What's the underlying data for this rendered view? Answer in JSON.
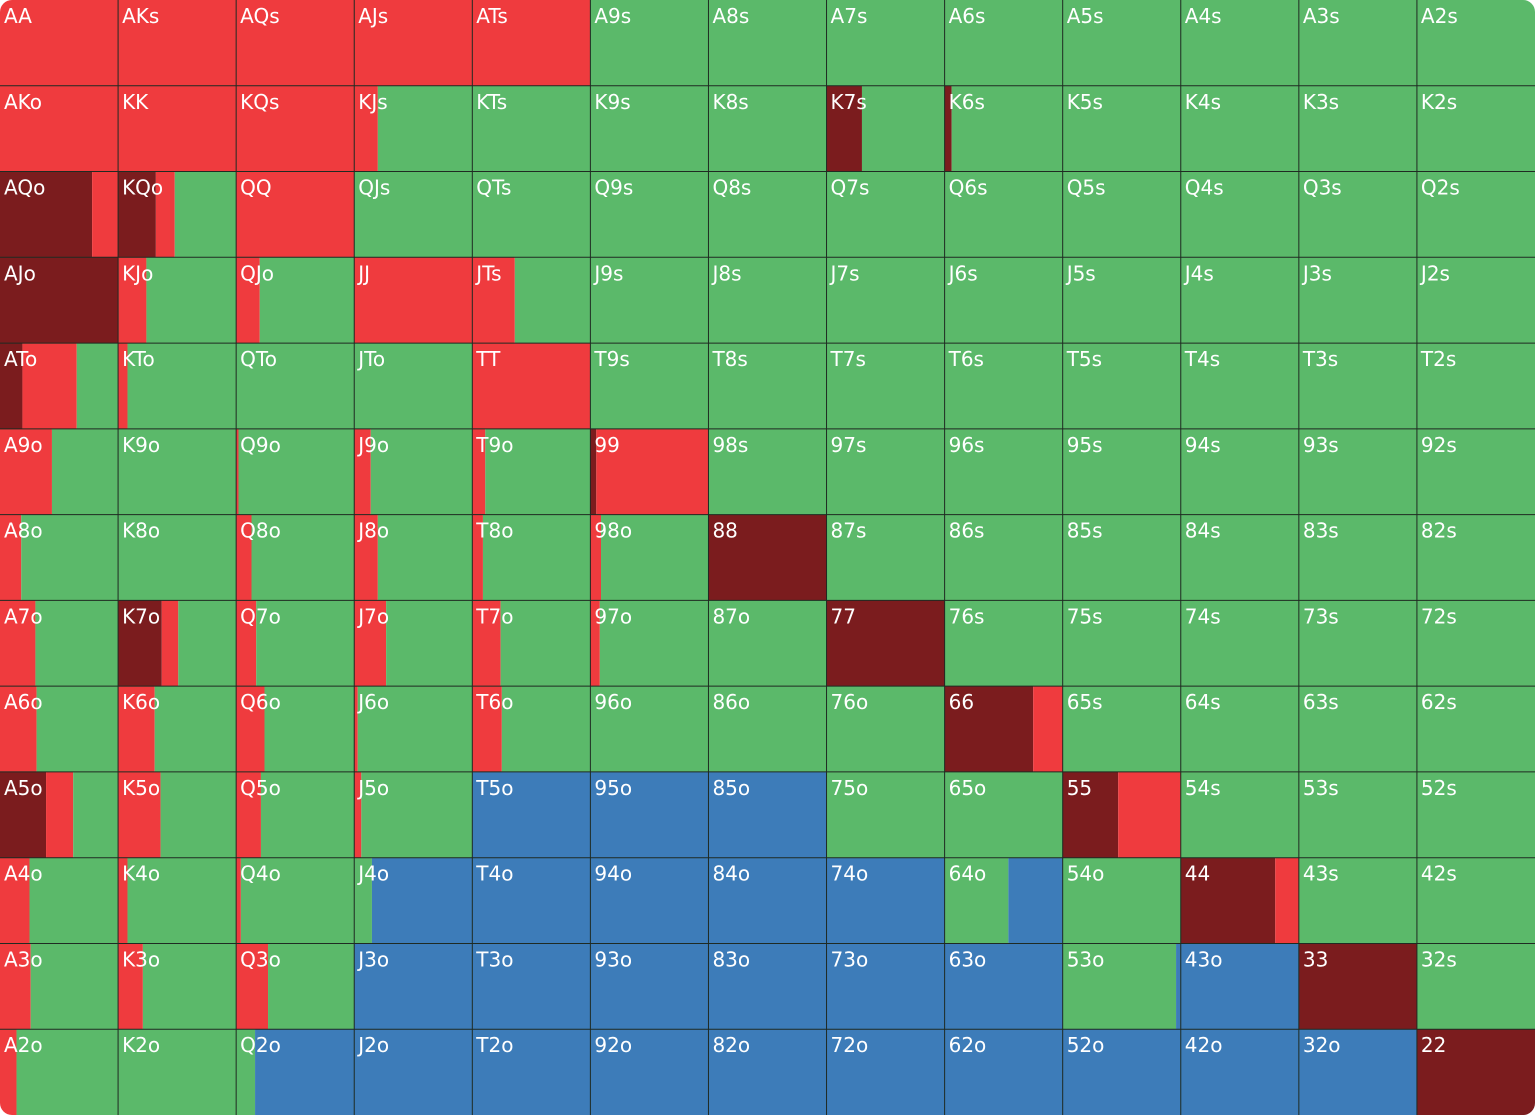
{
  "grid": {
    "colors": [
      "#7b1c1e",
      "#ef3b3e",
      "#5bb96a",
      "#3d7cb9"
    ],
    "labels": [
      [
        "AA",
        "AKs",
        "AQs",
        "AJs",
        "ATs",
        "A9s",
        "A8s",
        "A7s",
        "A6s",
        "A5s",
        "A4s",
        "A3s",
        "A2s"
      ],
      [
        "AKo",
        "KK",
        "KQs",
        "KJs",
        "KTs",
        "K9s",
        "K8s",
        "K7s",
        "K6s",
        "K5s",
        "K4s",
        "K3s",
        "K2s"
      ],
      [
        "AQo",
        "KQo",
        "QQ",
        "QJs",
        "QTs",
        "Q9s",
        "Q8s",
        "Q7s",
        "Q6s",
        "Q5s",
        "Q4s",
        "Q3s",
        "Q2s"
      ],
      [
        "AJo",
        "KJo",
        "QJo",
        "JJ",
        "JTs",
        "J9s",
        "J8s",
        "J7s",
        "J6s",
        "J5s",
        "J4s",
        "J3s",
        "J2s"
      ],
      [
        "ATo",
        "KTo",
        "QTo",
        "JTo",
        "TT",
        "T9s",
        "T8s",
        "T7s",
        "T6s",
        "T5s",
        "T4s",
        "T3s",
        "T2s"
      ],
      [
        "A9o",
        "K9o",
        "Q9o",
        "J9o",
        "T9o",
        "99",
        "98s",
        "97s",
        "96s",
        "95s",
        "94s",
        "93s",
        "92s"
      ],
      [
        "A8o",
        "K8o",
        "Q8o",
        "J8o",
        "T8o",
        "98o",
        "88",
        "87s",
        "86s",
        "85s",
        "84s",
        "83s",
        "82s"
      ],
      [
        "A7o",
        "K7o",
        "Q7o",
        "J7o",
        "T7o",
        "97o",
        "87o",
        "77",
        "76s",
        "75s",
        "74s",
        "73s",
        "72s"
      ],
      [
        "A6o",
        "K6o",
        "Q6o",
        "J6o",
        "T6o",
        "96o",
        "86o",
        "76o",
        "66",
        "65s",
        "64s",
        "63s",
        "62s"
      ],
      [
        "A5o",
        "K5o",
        "Q5o",
        "J5o",
        "T5o",
        "95o",
        "85o",
        "75o",
        "65o",
        "55",
        "54s",
        "53s",
        "52s"
      ],
      [
        "A4o",
        "K4o",
        "Q4o",
        "J4o",
        "T4o",
        "94o",
        "84o",
        "74o",
        "64o",
        "54o",
        "44",
        "43s",
        "42s"
      ],
      [
        "A3o",
        "K3o",
        "Q3o",
        "J3o",
        "T3o",
        "93o",
        "83o",
        "73o",
        "63o",
        "53o",
        "43o",
        "33",
        "32s"
      ],
      [
        "A2o",
        "K2o",
        "Q2o",
        "J2o",
        "T2o",
        "92o",
        "82o",
        "72o",
        "62o",
        "52o",
        "42o",
        "32o",
        "22"
      ]
    ],
    "freqs": [
      [
        [
          0,
          100,
          0,
          0
        ],
        [
          0,
          100,
          0,
          0
        ],
        [
          0,
          100,
          0,
          0
        ],
        [
          0,
          100,
          0,
          0
        ],
        [
          0,
          100,
          0,
          0
        ],
        [
          0,
          0,
          100,
          0
        ],
        [
          0,
          0,
          100,
          0
        ],
        [
          0,
          0,
          100,
          0
        ],
        [
          0,
          0,
          100,
          0
        ],
        [
          0,
          0,
          100,
          0
        ],
        [
          0,
          0,
          100,
          0
        ],
        [
          0,
          0,
          100,
          0
        ],
        [
          0,
          0,
          100,
          0
        ]
      ],
      [
        [
          0,
          100,
          0,
          0
        ],
        [
          0,
          100,
          0,
          0
        ],
        [
          0,
          100,
          0,
          0
        ],
        [
          0,
          20,
          80,
          0
        ],
        [
          0,
          0,
          100,
          0
        ],
        [
          0,
          0,
          100,
          0
        ],
        [
          0,
          0,
          100,
          0
        ],
        [
          30,
          0,
          70,
          0
        ],
        [
          6,
          0,
          94,
          0
        ],
        [
          0,
          0,
          100,
          0
        ],
        [
          0,
          0,
          100,
          0
        ],
        [
          0,
          0,
          100,
          0
        ],
        [
          0,
          0,
          100,
          0
        ]
      ],
      [
        [
          78,
          22,
          0,
          0
        ],
        [
          32,
          16,
          52,
          0
        ],
        [
          0,
          100,
          0,
          0
        ],
        [
          0,
          0,
          100,
          0
        ],
        [
          0,
          0,
          100,
          0
        ],
        [
          0,
          0,
          100,
          0
        ],
        [
          0,
          0,
          100,
          0
        ],
        [
          0,
          0,
          100,
          0
        ],
        [
          0,
          0,
          100,
          0
        ],
        [
          0,
          0,
          100,
          0
        ],
        [
          0,
          0,
          100,
          0
        ],
        [
          0,
          0,
          100,
          0
        ],
        [
          0,
          0,
          100,
          0
        ]
      ],
      [
        [
          100,
          0,
          0,
          0
        ],
        [
          0,
          24,
          76,
          0
        ],
        [
          0,
          20,
          80,
          0
        ],
        [
          0,
          100,
          0,
          0
        ],
        [
          0,
          36,
          64,
          0
        ],
        [
          0,
          0,
          100,
          0
        ],
        [
          0,
          0,
          100,
          0
        ],
        [
          0,
          0,
          100,
          0
        ],
        [
          0,
          0,
          100,
          0
        ],
        [
          0,
          0,
          100,
          0
        ],
        [
          0,
          0,
          100,
          0
        ],
        [
          0,
          0,
          100,
          0
        ],
        [
          0,
          0,
          100,
          0
        ]
      ],
      [
        [
          19,
          46,
          35,
          0
        ],
        [
          0,
          8,
          92,
          0
        ],
        [
          0,
          0,
          100,
          0
        ],
        [
          0,
          0,
          100,
          0
        ],
        [
          0,
          100,
          0,
          0
        ],
        [
          0,
          0,
          100,
          0
        ],
        [
          0,
          0,
          100,
          0
        ],
        [
          0,
          0,
          100,
          0
        ],
        [
          0,
          0,
          100,
          0
        ],
        [
          0,
          0,
          100,
          0
        ],
        [
          0,
          0,
          100,
          0
        ],
        [
          0,
          0,
          100,
          0
        ],
        [
          0,
          0,
          100,
          0
        ]
      ],
      [
        [
          0,
          44,
          56,
          0
        ],
        [
          0,
          0,
          100,
          0
        ],
        [
          0,
          2,
          98,
          0
        ],
        [
          0,
          14,
          86,
          0
        ],
        [
          0,
          11,
          89,
          0
        ],
        [
          5,
          95,
          0,
          0
        ],
        [
          0,
          0,
          100,
          0
        ],
        [
          0,
          0,
          100,
          0
        ],
        [
          0,
          0,
          100,
          0
        ],
        [
          0,
          0,
          100,
          0
        ],
        [
          0,
          0,
          100,
          0
        ],
        [
          0,
          0,
          100,
          0
        ],
        [
          0,
          0,
          100,
          0
        ]
      ],
      [
        [
          0,
          18,
          82,
          0
        ],
        [
          0,
          0,
          100,
          0
        ],
        [
          0,
          13,
          87,
          0
        ],
        [
          0,
          20,
          80,
          0
        ],
        [
          0,
          9,
          91,
          0
        ],
        [
          0,
          9,
          91,
          0
        ],
        [
          100,
          0,
          0,
          0
        ],
        [
          0,
          0,
          100,
          0
        ],
        [
          0,
          0,
          100,
          0
        ],
        [
          0,
          0,
          100,
          0
        ],
        [
          0,
          0,
          100,
          0
        ],
        [
          0,
          0,
          100,
          0
        ],
        [
          0,
          0,
          100,
          0
        ]
      ],
      [
        [
          0,
          30,
          70,
          0
        ],
        [
          37,
          14,
          49,
          0
        ],
        [
          0,
          17,
          83,
          0
        ],
        [
          0,
          27,
          73,
          0
        ],
        [
          0,
          24,
          76,
          0
        ],
        [
          0,
          8,
          92,
          0
        ],
        [
          0,
          0,
          100,
          0
        ],
        [
          100,
          0,
          0,
          0
        ],
        [
          0,
          0,
          100,
          0
        ],
        [
          0,
          0,
          100,
          0
        ],
        [
          0,
          0,
          100,
          0
        ],
        [
          0,
          0,
          100,
          0
        ],
        [
          0,
          0,
          100,
          0
        ]
      ],
      [
        [
          0,
          31,
          69,
          0
        ],
        [
          0,
          31,
          69,
          0
        ],
        [
          0,
          24,
          76,
          0
        ],
        [
          0,
          3,
          97,
          0
        ],
        [
          0,
          25,
          75,
          0
        ],
        [
          0,
          0,
          100,
          0
        ],
        [
          0,
          0,
          100,
          0
        ],
        [
          0,
          0,
          100,
          0
        ],
        [
          75,
          25,
          0,
          0
        ],
        [
          0,
          0,
          100,
          0
        ],
        [
          0,
          0,
          100,
          0
        ],
        [
          0,
          0,
          100,
          0
        ],
        [
          0,
          0,
          100,
          0
        ]
      ],
      [
        [
          39,
          23,
          38,
          0
        ],
        [
          0,
          36,
          64,
          0
        ],
        [
          0,
          21,
          79,
          0
        ],
        [
          0,
          6,
          94,
          0
        ],
        [
          0,
          0,
          0,
          100
        ],
        [
          0,
          0,
          0,
          100
        ],
        [
          0,
          0,
          0,
          100
        ],
        [
          0,
          0,
          100,
          0
        ],
        [
          0,
          0,
          100,
          0
        ],
        [
          47,
          53,
          0,
          0
        ],
        [
          0,
          0,
          100,
          0
        ],
        [
          0,
          0,
          100,
          0
        ],
        [
          0,
          0,
          100,
          0
        ]
      ],
      [
        [
          0,
          25,
          75,
          0
        ],
        [
          0,
          8,
          92,
          0
        ],
        [
          0,
          4,
          96,
          0
        ],
        [
          0,
          0,
          15,
          85
        ],
        [
          0,
          0,
          0,
          100
        ],
        [
          0,
          0,
          0,
          100
        ],
        [
          0,
          0,
          0,
          100
        ],
        [
          0,
          0,
          0,
          100
        ],
        [
          0,
          0,
          54,
          46
        ],
        [
          0,
          0,
          100,
          0
        ],
        [
          80,
          20,
          0,
          0
        ],
        [
          0,
          0,
          100,
          0
        ],
        [
          0,
          0,
          100,
          0
        ]
      ],
      [
        [
          0,
          26,
          74,
          0
        ],
        [
          0,
          21,
          79,
          0
        ],
        [
          0,
          27,
          73,
          0
        ],
        [
          0,
          0,
          0,
          100
        ],
        [
          0,
          0,
          0,
          100
        ],
        [
          0,
          0,
          0,
          100
        ],
        [
          0,
          0,
          0,
          100
        ],
        [
          0,
          0,
          0,
          100
        ],
        [
          0,
          0,
          0,
          100
        ],
        [
          0,
          0,
          96,
          4
        ],
        [
          0,
          0,
          0,
          100
        ],
        [
          100,
          0,
          0,
          0
        ],
        [
          0,
          0,
          100,
          0
        ]
      ],
      [
        [
          0,
          14,
          86,
          0
        ],
        [
          0,
          0,
          100,
          0
        ],
        [
          0,
          0,
          16,
          84
        ],
        [
          0,
          0,
          0,
          100
        ],
        [
          0,
          0,
          0,
          100
        ],
        [
          0,
          0,
          0,
          100
        ],
        [
          0,
          0,
          0,
          100
        ],
        [
          0,
          0,
          0,
          100
        ],
        [
          0,
          0,
          0,
          100
        ],
        [
          0,
          0,
          0,
          100
        ],
        [
          0,
          0,
          0,
          100
        ],
        [
          0,
          0,
          0,
          100
        ],
        [
          100,
          0,
          0,
          0
        ]
      ]
    ]
  }
}
